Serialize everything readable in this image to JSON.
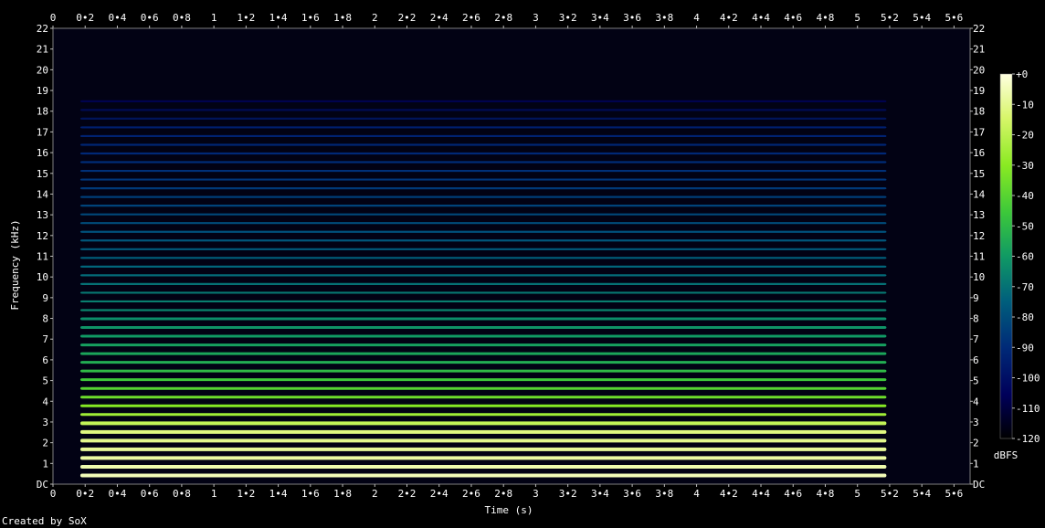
{
  "credit": "Created by SoX",
  "chart_data": {
    "type": "heatmap",
    "title": "",
    "xlabel": "Time (s)",
    "ylabel": "Frequency (kHz)",
    "xlim": [
      0,
      5.7
    ],
    "ylim": [
      0,
      22
    ],
    "x_ticks": [
      "0",
      "0•2",
      "0•4",
      "0•6",
      "0•8",
      "1",
      "1•2",
      "1•4",
      "1•6",
      "1•8",
      "2",
      "2•2",
      "2•4",
      "2•6",
      "2•8",
      "3",
      "3•2",
      "3•4",
      "3•6",
      "3•8",
      "4",
      "4•2",
      "4•4",
      "4•6",
      "4•8",
      "5",
      "5•2",
      "5•4",
      "5•6"
    ],
    "x_tick_values": [
      0,
      0.2,
      0.4,
      0.6,
      0.8,
      1,
      1.2,
      1.4,
      1.6,
      1.8,
      2,
      2.2,
      2.4,
      2.6,
      2.8,
      3,
      3.2,
      3.4,
      3.6,
      3.8,
      4,
      4.2,
      4.4,
      4.6,
      4.8,
      5,
      5.2,
      5.4,
      5.6
    ],
    "y_ticks": [
      "DC",
      "1",
      "2",
      "3",
      "4",
      "5",
      "6",
      "7",
      "8",
      "9",
      "10",
      "11",
      "12",
      "13",
      "14",
      "15",
      "16",
      "17",
      "18",
      "19",
      "20",
      "21",
      "22"
    ],
    "y_tick_values": [
      0,
      1,
      2,
      3,
      4,
      5,
      6,
      7,
      8,
      9,
      10,
      11,
      12,
      13,
      14,
      15,
      16,
      17,
      18,
      19,
      20,
      21,
      22
    ],
    "colorbar": {
      "label": "dBFS",
      "ticks": [
        "+0",
        "-10",
        "-20",
        "-30",
        "-40",
        "-50",
        "-60",
        "-70",
        "-80",
        "-90",
        "-100",
        "-110",
        "-120"
      ],
      "tick_values": [
        0,
        -10,
        -20,
        -30,
        -40,
        -50,
        -60,
        -70,
        -80,
        -90,
        -100,
        -110,
        -120
      ],
      "range": [
        -120,
        0
      ]
    },
    "signal": {
      "start_s": 0.17,
      "end_s": 5.18,
      "fundamental_khz": 0.42,
      "max_harmonic_khz": 18.5,
      "levels_dbfs": [
        [
          0.4,
          -5
        ],
        [
          2.5,
          -12
        ],
        [
          3.5,
          -28
        ],
        [
          6,
          -55
        ],
        [
          10,
          -72
        ],
        [
          14,
          -85
        ],
        [
          17.5,
          -95
        ],
        [
          18.5,
          -105
        ]
      ],
      "noise_floor_dbfs": -118
    }
  }
}
